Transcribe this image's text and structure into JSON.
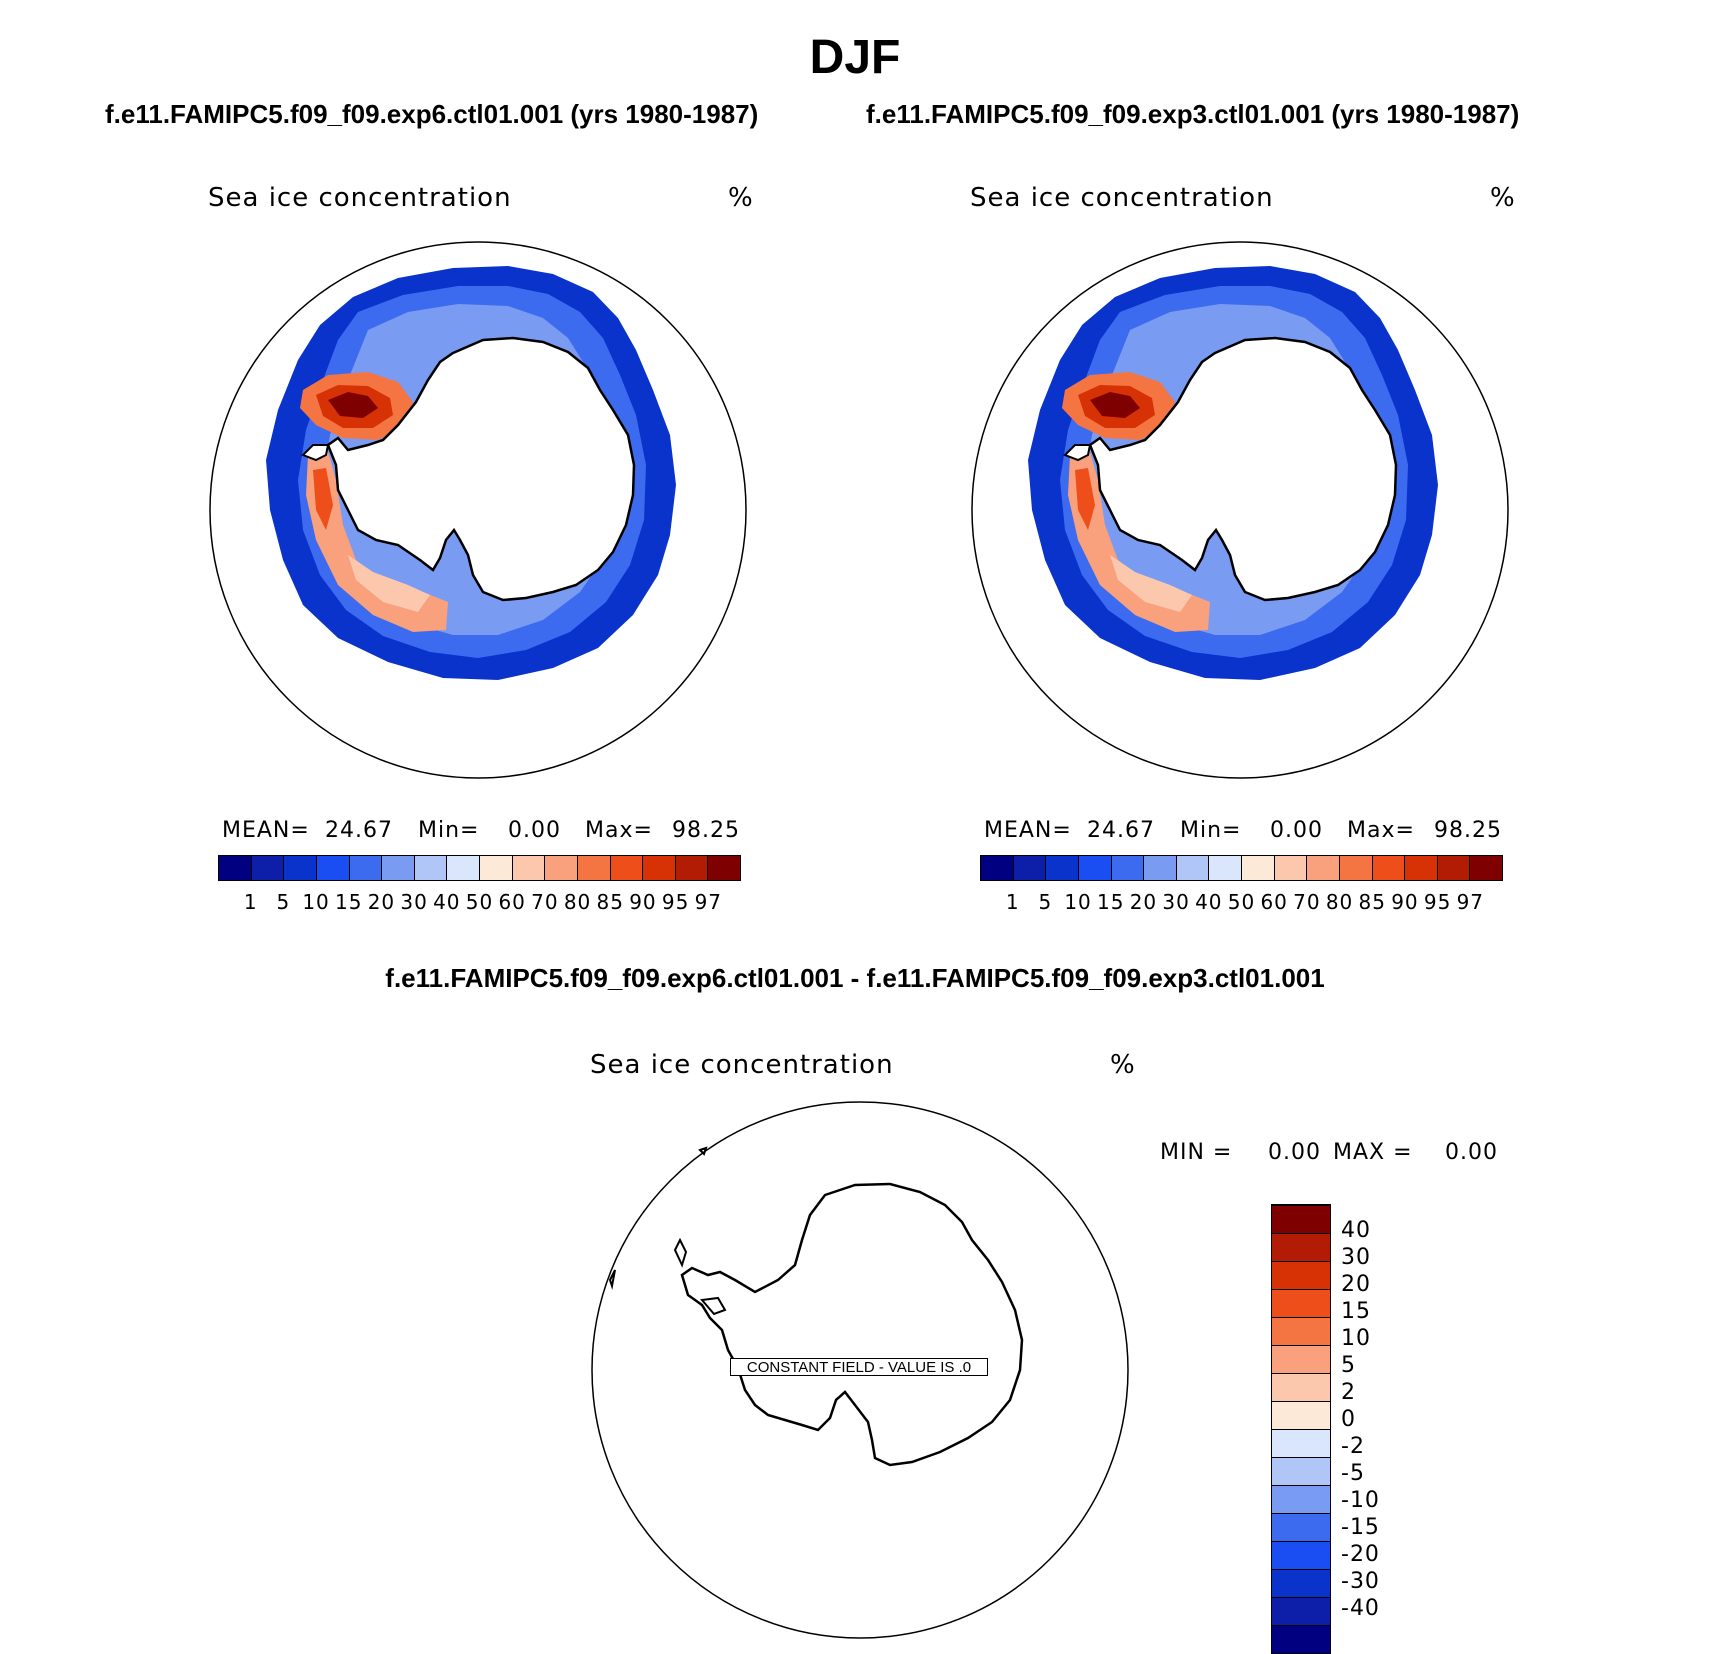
{
  "header": {
    "season": "DJF",
    "case1_title": "f.e11.FAMIPC5.f09_f09.exp6.ctl01.001 (yrs 1980-1987)",
    "case2_title": "f.e11.FAMIPC5.f09_f09.exp3.ctl01.001 (yrs 1980-1987)",
    "diff_title": "f.e11.FAMIPC5.f09_f09.exp6.ctl01.001 - f.e11.FAMIPC5.f09_f09.exp3.ctl01.001"
  },
  "panels": [
    {
      "variable": "Sea ice concentration",
      "units": "%",
      "mean_label": "MEAN=",
      "mean_value": "24.67",
      "min_label": "Min=",
      "min_value": "0.00",
      "max_label": "Max=",
      "max_value": "98.25"
    },
    {
      "variable": "Sea ice concentration",
      "units": "%",
      "mean_label": "MEAN=",
      "mean_value": "24.67",
      "min_label": "Min=",
      "min_value": "0.00",
      "max_label": "Max=",
      "max_value": "98.25"
    }
  ],
  "diff_panel": {
    "variable": "Sea ice concentration",
    "units": "%",
    "min_label": "MIN =",
    "min_value": "0.00",
    "max_label": "MAX =",
    "max_value": "0.00",
    "constant_field_note": "CONSTANT FIELD - VALUE IS .0"
  },
  "colorbar_levels": [
    "1",
    "5",
    "10",
    "15",
    "20",
    "30",
    "40",
    "50",
    "60",
    "70",
    "80",
    "85",
    "90",
    "95",
    "97"
  ],
  "colorbar_colors": [
    "#000080",
    "#0d1fa8",
    "#0a33cc",
    "#1a4df2",
    "#3d6bf0",
    "#7a9bf2",
    "#b0c6f7",
    "#d9e6fb",
    "#fde9d8",
    "#fbc7ad",
    "#f9a07d",
    "#f57542",
    "#ee4f1a",
    "#d63206",
    "#b21b04",
    "#7f0000"
  ],
  "diff_colorbar_levels": [
    "-40",
    "-30",
    "-20",
    "-15",
    "-10",
    "-5",
    "-2",
    "0",
    "2",
    "5",
    "10",
    "15",
    "20",
    "30",
    "40"
  ],
  "diff_colorbar_colors": [
    "#000080",
    "#0d1fa8",
    "#0a33cc",
    "#1a4df2",
    "#3d6bf0",
    "#7a9bf2",
    "#b0c6f7",
    "#d9e6fb",
    "#fde9d8",
    "#fbc7ad",
    "#f9a07d",
    "#f57542",
    "#ee4f1a",
    "#d63206",
    "#b21b04",
    "#7f0000"
  ]
}
